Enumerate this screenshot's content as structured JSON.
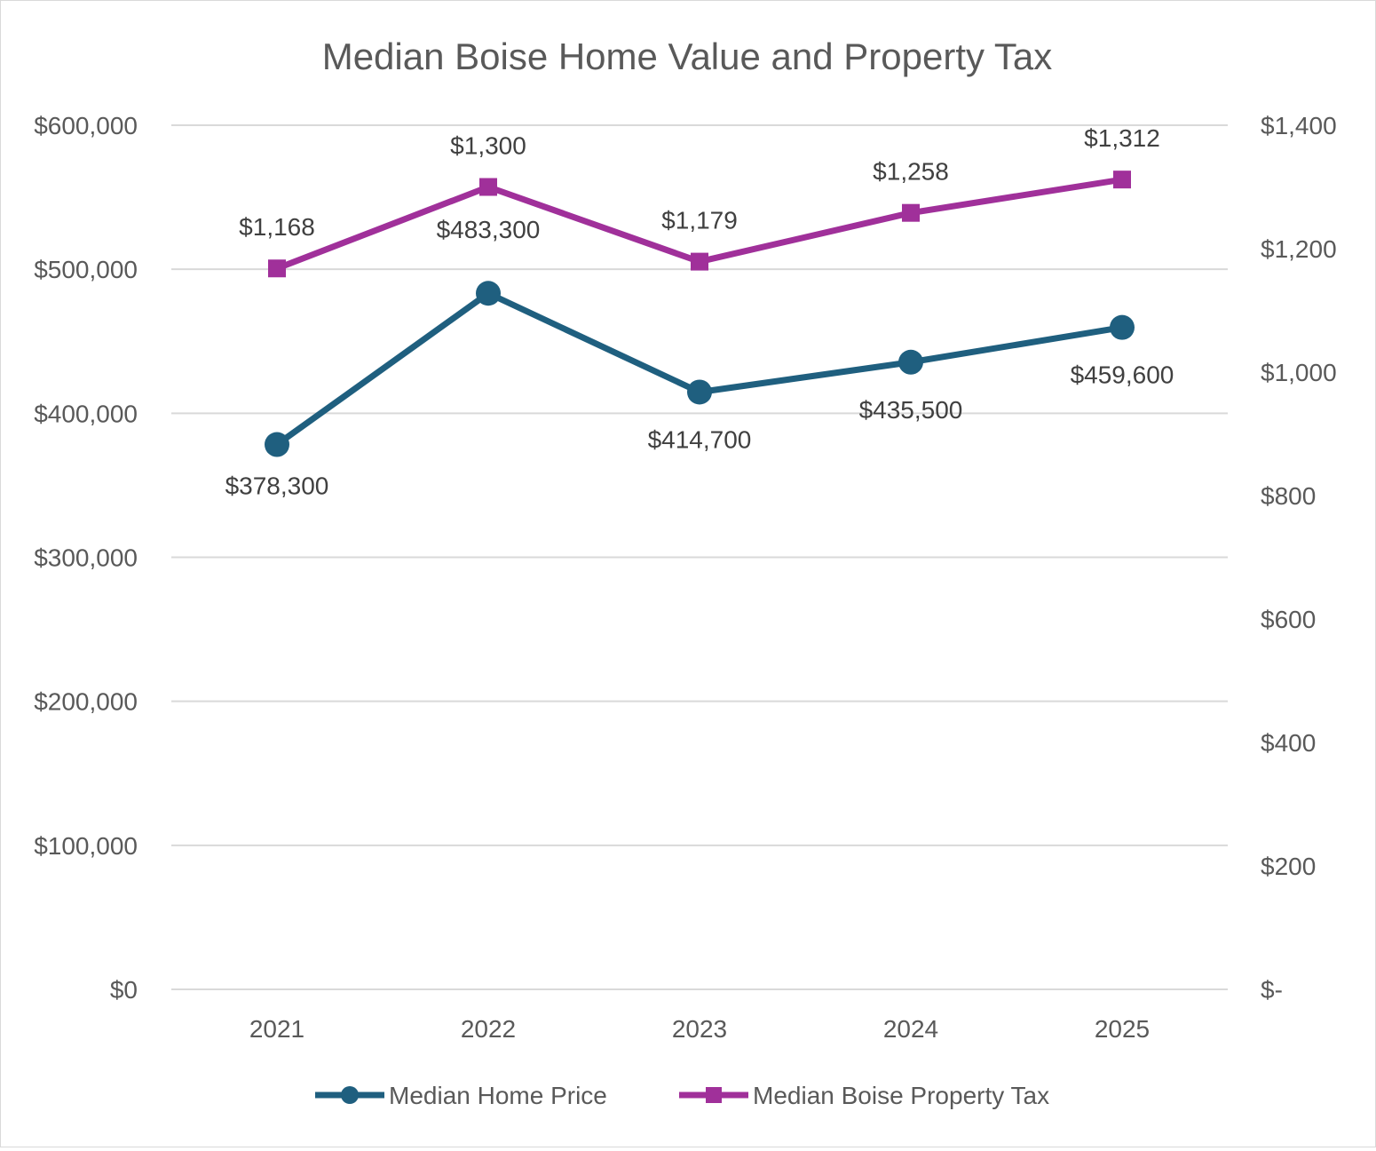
{
  "chart_data": {
    "type": "line",
    "title": "Median Boise Home Value and Property Tax",
    "categories": [
      "2021",
      "2022",
      "2023",
      "2024",
      "2025"
    ],
    "y_left": {
      "range": [
        0,
        600000
      ],
      "ticks": [
        0,
        100000,
        200000,
        300000,
        400000,
        500000,
        600000
      ],
      "tick_labels": [
        "$0",
        "$100,000",
        "$200,000",
        "$300,000",
        "$400,000",
        "$500,000",
        "$600,000"
      ]
    },
    "y_right": {
      "range": [
        0,
        1400
      ],
      "ticks": [
        0,
        200,
        400,
        600,
        800,
        1000,
        1200,
        1400
      ],
      "tick_labels": [
        "$-",
        "$200",
        "$400",
        "$600",
        "$800",
        "$1,000",
        "$1,200",
        "$1,400"
      ]
    },
    "grid": true,
    "legend_position": "bottom",
    "series": [
      {
        "name": "Median Home Price",
        "axis": "left",
        "color": "#1f5f7f",
        "marker": "circle",
        "values": [
          378300,
          483300,
          414700,
          435500,
          459600
        ],
        "labels": [
          "$378,300",
          "$483,300",
          "$414,700",
          "$435,500",
          "$459,600"
        ]
      },
      {
        "name": "Median Boise Property Tax",
        "axis": "right",
        "color": "#a0309a",
        "marker": "square",
        "values": [
          1168,
          1300,
          1179,
          1258,
          1312
        ],
        "labels": [
          "$1,168",
          "$1,300",
          "$1,179",
          "$1,258",
          "$1,312"
        ]
      }
    ]
  }
}
